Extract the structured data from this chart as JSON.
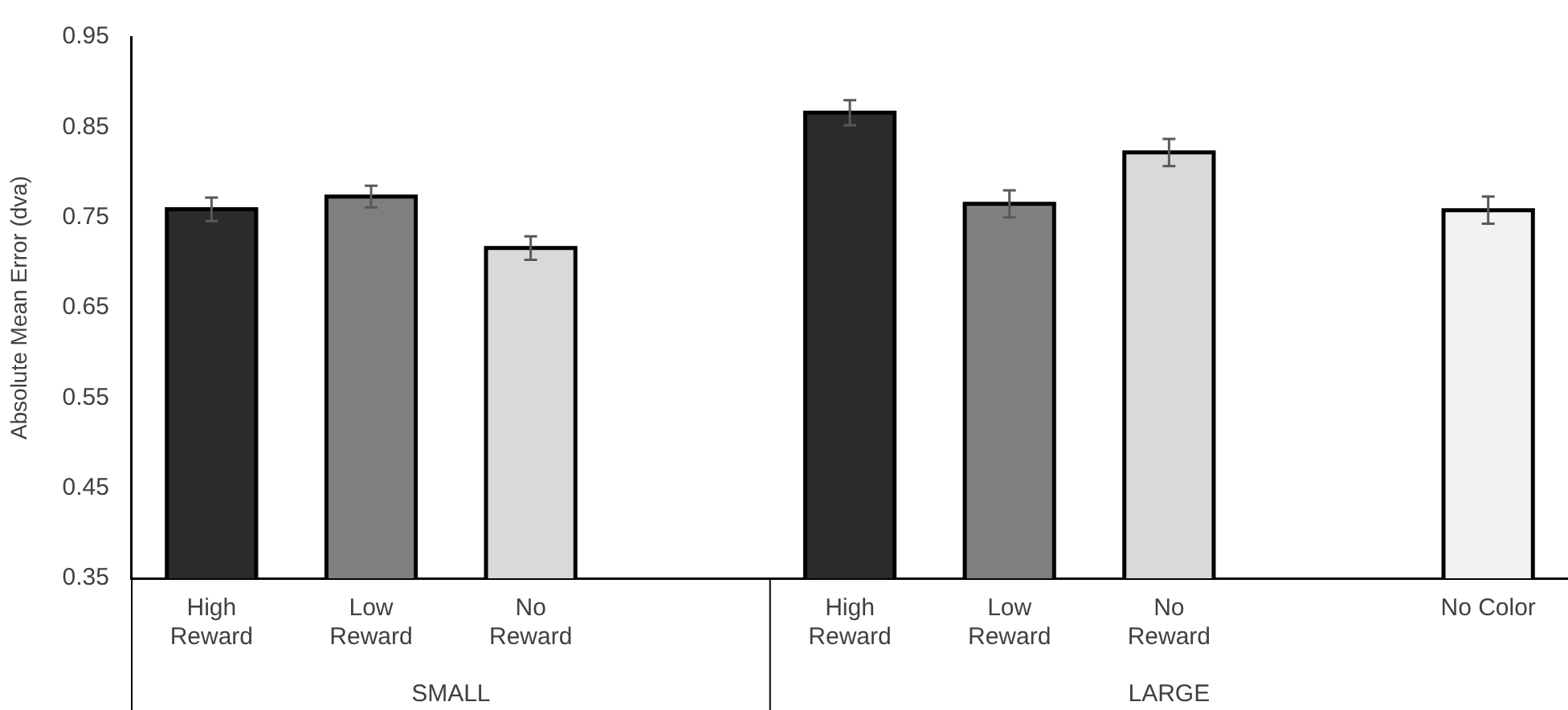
{
  "chart_data": {
    "type": "bar",
    "ylabel": "Absolute Mean Error (dva)",
    "categories": [
      "High Reward",
      "Low Reward",
      "No Reward",
      null,
      "High Reward",
      "Low Reward",
      "No Reward",
      null,
      "No Color"
    ],
    "values": [
      0.759,
      0.773,
      0.716,
      null,
      0.866,
      0.765,
      0.822,
      null,
      0.758
    ],
    "errors": [
      0.013,
      0.012,
      0.013,
      null,
      0.014,
      0.015,
      0.015,
      null,
      0.015
    ],
    "colors": [
      "#2b2b2b",
      "#7f7f7f",
      "#d9d9d9",
      "#ffffff",
      "#2b2b2b",
      "#7f7f7f",
      "#d9d9d9",
      "#ffffff",
      "#f2f2f2"
    ],
    "ylim": [
      0.35,
      0.95
    ],
    "yticks": [
      0.35,
      0.45,
      0.55,
      0.65,
      0.75,
      0.85,
      0.95
    ],
    "annotations": [
      "SMALL",
      "LARGE"
    ],
    "grid": false,
    "legend": false
  }
}
